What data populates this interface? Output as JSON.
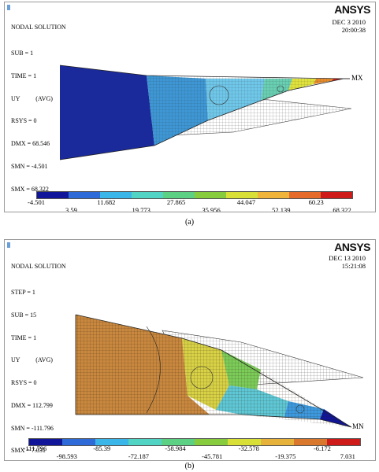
{
  "panels": [
    {
      "caption": "(a)",
      "title": "NODAL SOLUTION",
      "info_lines": [
        "SUB = 1",
        "TIME = 1",
        "UY          (AVG)",
        "RSYS = 0",
        "DMX = 68.546",
        "SMN = -4.501",
        "SMX = 68.322"
      ],
      "brand": "ANSYS",
      "date": "DEC   3 2010",
      "time": "20:00:38",
      "extreme_label": "MX",
      "legend_colors": [
        "#10159a",
        "#2e6ad8",
        "#3ab6e8",
        "#52d4c4",
        "#5cd083",
        "#86cc3c",
        "#d8e038",
        "#f1b43a",
        "#e66b2a",
        "#cf1a1a"
      ],
      "legend_values": [
        "-4.501",
        "3.59",
        "11.682",
        "19.773",
        "27.865",
        "35.956",
        "44.047",
        "52.139",
        "60.23",
        "68.322"
      ]
    },
    {
      "caption": "(b)",
      "title": "NODAL SOLUTION",
      "info_lines": [
        "STEP = 1",
        "SUB = 15",
        "TIME = 1",
        "UY          (AVG)",
        "RSYS = 0",
        "DMX = 112.799",
        "SMN = -111.796",
        "SMX = 7.031"
      ],
      "brand": "ANSYS",
      "date": "DEC   13 2010",
      "time": "15:21:08",
      "extreme_label": "MN",
      "legend_colors": [
        "#10159a",
        "#2e6ad8",
        "#3ab6e8",
        "#52d4c4",
        "#5cd083",
        "#86cc3c",
        "#d8e038",
        "#e6b23a",
        "#d9782c",
        "#cf1a1a"
      ],
      "legend_values": [
        "-111.796",
        "-98.593",
        "-85.39",
        "-72.187",
        "-58.984",
        "-45.781",
        "-32.578",
        "-19.375",
        "-6.172",
        "7.031"
      ]
    }
  ]
}
